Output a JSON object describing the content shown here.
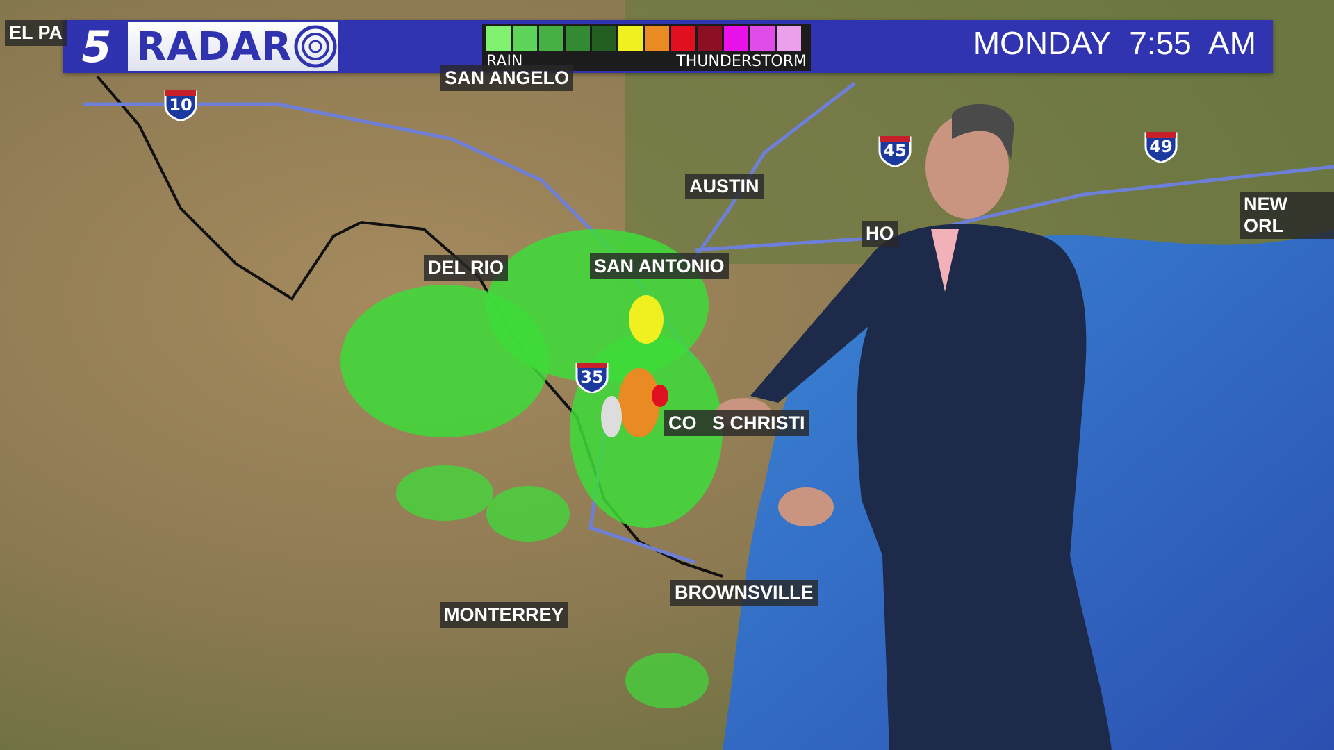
{
  "header": {
    "logo_number": "5",
    "logo_text": "RADAR",
    "time": "MONDAY  7:55 AM"
  },
  "legend": {
    "low_label": "RAIN",
    "high_label": "THUNDERSTORM",
    "colors": [
      "#7ff06f",
      "#5fd45a",
      "#47b045",
      "#338a33",
      "#235f22",
      "#f0f020",
      "#e98a22",
      "#e01020",
      "#8c1024",
      "#ea10ea",
      "#e04ce8",
      "#eaa0ea"
    ]
  },
  "cities": [
    "EL PA",
    "SAN ANGELO",
    "AUSTIN",
    "HO",
    "NEW ORL",
    "DEL RIO",
    "SAN ANTONIO",
    "CO   S CHRISTI",
    "BROWNSVILLE",
    "MONTERREY"
  ],
  "interstates": [
    "10",
    "35",
    "45",
    "49"
  ],
  "colors": {
    "bar": "#3134b0",
    "gulf": "#2f73c8",
    "radar": "#3ddc3a"
  }
}
